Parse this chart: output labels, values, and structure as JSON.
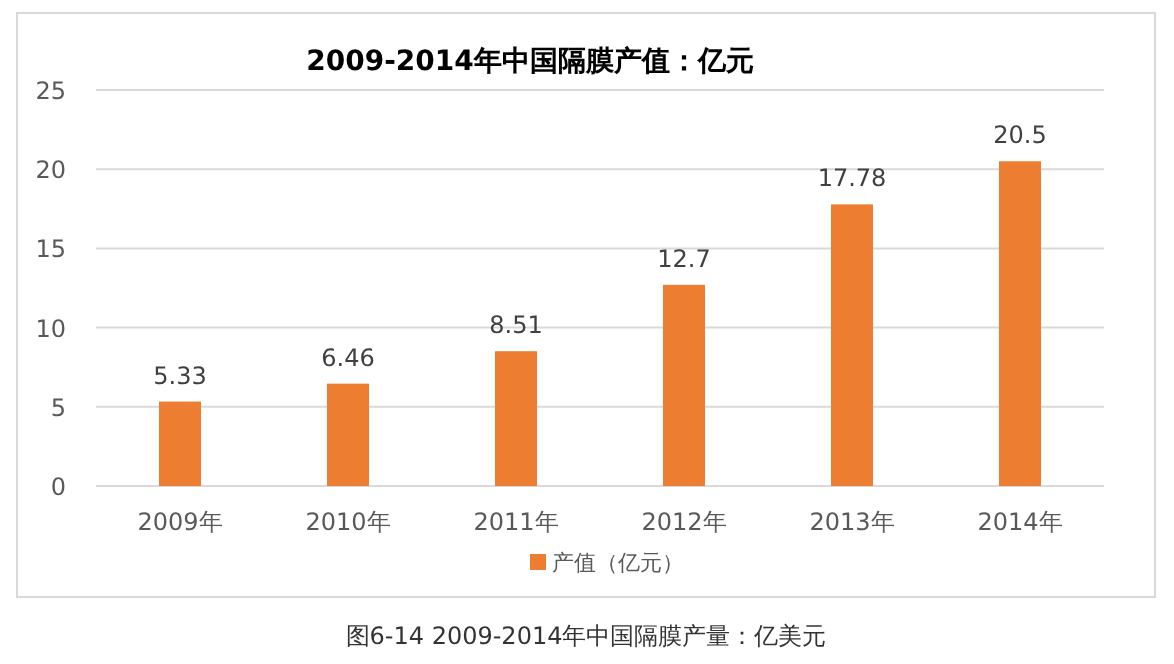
{
  "chart_data": {
    "type": "bar",
    "title": "2009-2014年中国隔膜产值：亿元",
    "categories": [
      "2009年",
      "2010年",
      "2011年",
      "2012年",
      "2013年",
      "2014年"
    ],
    "series": [
      {
        "name": "产值（亿元）",
        "color": "#ed7d31",
        "values": [
          5.33,
          6.46,
          8.51,
          12.7,
          17.78,
          20.5
        ]
      }
    ],
    "ylim": [
      0,
      25
    ],
    "yticks": [
      0,
      5,
      10,
      15,
      20,
      25
    ],
    "grid": "y",
    "legend": "bottom",
    "data_labels": true,
    "annotations": [
      "图6-14 2009-2014年中国隔膜产量：亿美元"
    ]
  }
}
